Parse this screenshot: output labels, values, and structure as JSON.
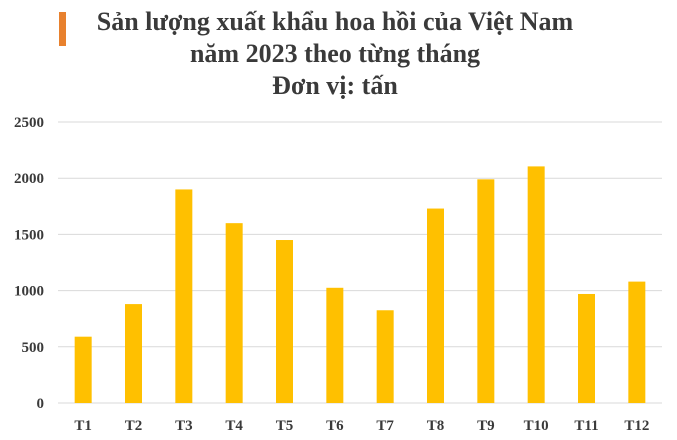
{
  "title_lines": [
    "Sản lượng xuất khẩu hoa hồi của Việt Nam",
    "năm 2023 theo từng tháng",
    "Đơn vị: tấn"
  ],
  "colors": {
    "accent": "#E8812E",
    "bar": "#FFC000",
    "grid": "#D9D9D9",
    "text": "#3a3a3a"
  },
  "chart_data": {
    "type": "bar",
    "title": "Sản lượng xuất khẩu hoa hồi của Việt Nam năm 2023 theo từng tháng",
    "subtitle": "Đơn vị: tấn",
    "xlabel": "",
    "ylabel": "",
    "categories": [
      "T1",
      "T2",
      "T3",
      "T4",
      "T5",
      "T6",
      "T7",
      "T8",
      "T9",
      "T10",
      "T11",
      "T12"
    ],
    "values": [
      590,
      880,
      1900,
      1600,
      1450,
      1025,
      825,
      1730,
      1990,
      2105,
      970,
      1080
    ],
    "ylim": [
      0,
      2500
    ],
    "yticks": [
      0,
      500,
      1000,
      1500,
      2000,
      2500
    ],
    "grid": true,
    "legend": "none"
  }
}
